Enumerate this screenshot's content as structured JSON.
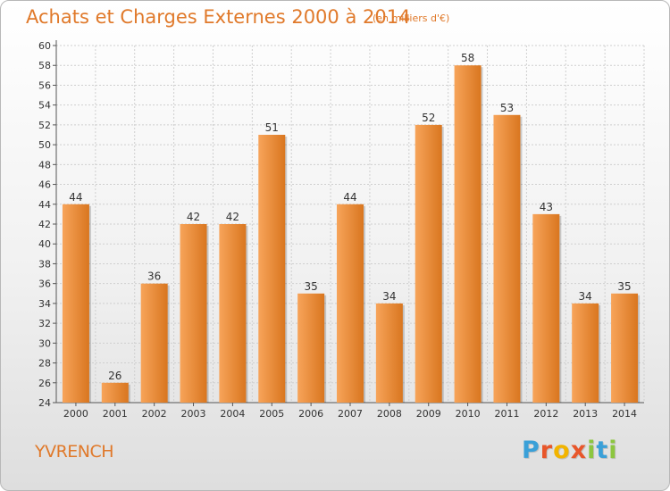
{
  "header": {
    "title": "Achats et Charges Externes 2000 à 2014",
    "unit": "(en milliers d'€)"
  },
  "footer": {
    "commune": "YVRENCH",
    "logo_letters": [
      "P",
      "r",
      "o",
      "x",
      "i",
      "t",
      "i"
    ],
    "logo_colors": [
      "#3aa0d8",
      "#e8562a",
      "#f2b400",
      "#e8562a",
      "#8cc63f",
      "#3aa0d8",
      "#8cc63f"
    ]
  },
  "colors": {
    "bar_light": "#f7a45a",
    "bar_dark": "#d9761f",
    "accent": "#e0792a"
  },
  "chart_data": {
    "type": "bar",
    "title": "Achats et Charges Externes 2000 à 2014",
    "subtitle": "(en milliers d'€)",
    "categories": [
      "2000",
      "2001",
      "2002",
      "2003",
      "2004",
      "2005",
      "2006",
      "2007",
      "2008",
      "2009",
      "2010",
      "2011",
      "2012",
      "2013",
      "2014"
    ],
    "values": [
      44,
      26,
      36,
      42,
      42,
      51,
      35,
      44,
      34,
      52,
      58,
      53,
      43,
      34,
      35
    ],
    "ylim": [
      24,
      60
    ],
    "yticks": [
      24,
      26,
      28,
      30,
      32,
      34,
      36,
      38,
      40,
      42,
      44,
      46,
      48,
      50,
      52,
      54,
      56,
      58,
      60
    ],
    "grid": true,
    "legend": "none"
  }
}
